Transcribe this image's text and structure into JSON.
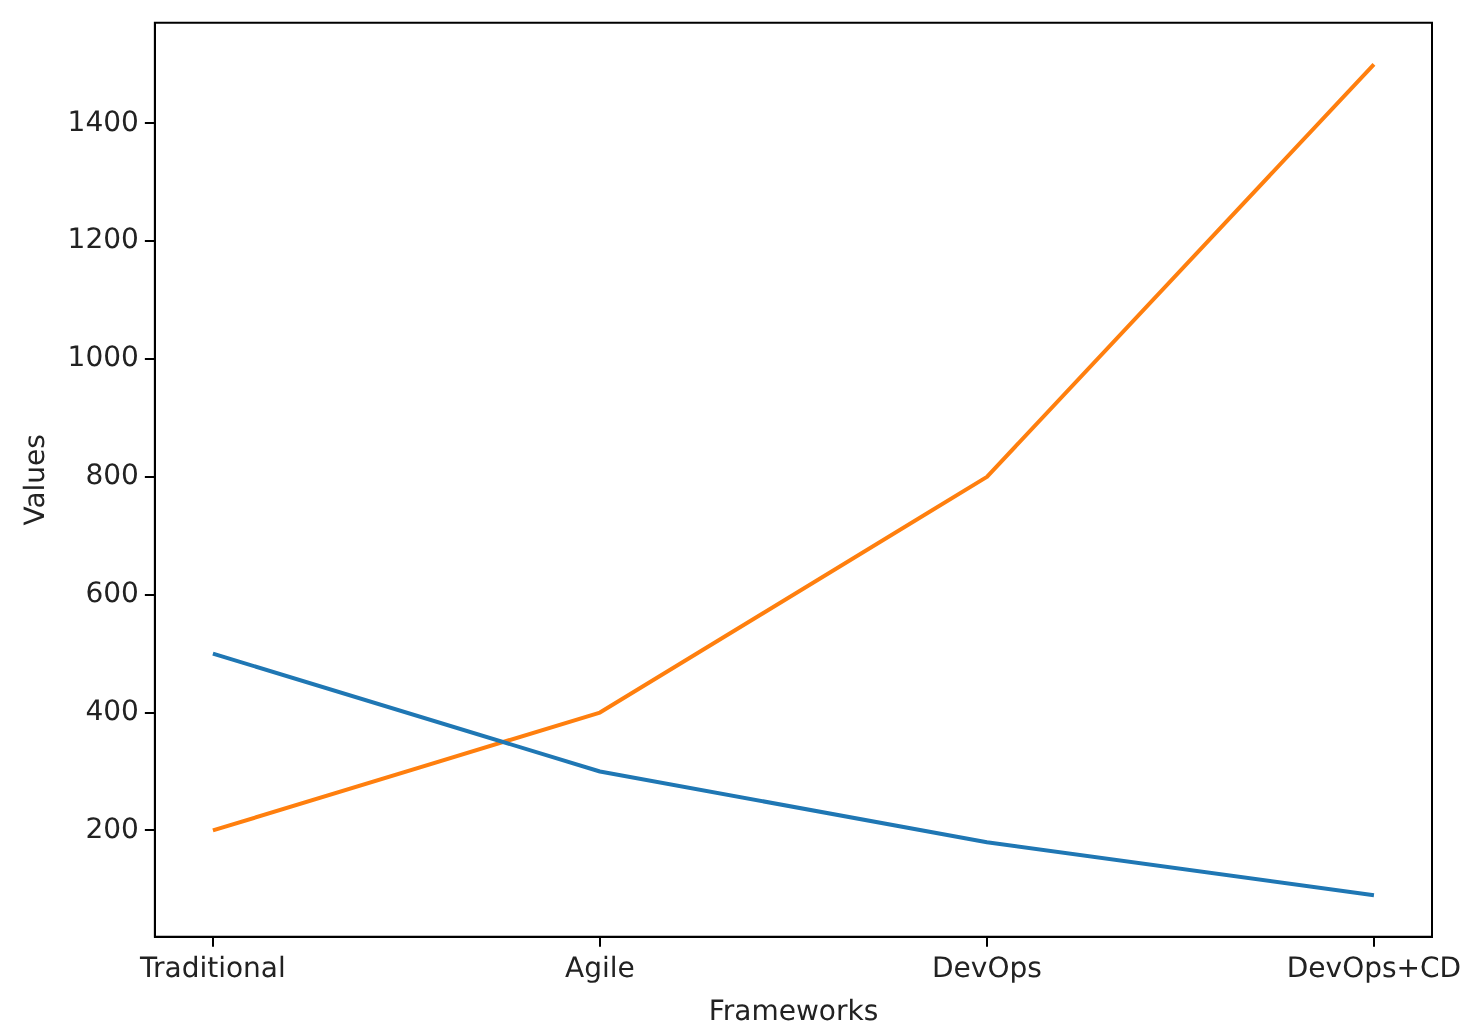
{
  "chart_data": {
    "type": "line",
    "xlabel": "Frameworks",
    "ylabel": "Values",
    "categories": [
      "Traditional",
      "Agile",
      "DevOps",
      "DevOps+CD"
    ],
    "series": [
      {
        "color": "#1f77b4",
        "values": [
          500,
          300,
          180,
          90
        ]
      },
      {
        "color": "#ff7f0e",
        "values": [
          200,
          400,
          800,
          1500
        ]
      }
    ],
    "ylim": [
      19.5,
      1570.5
    ],
    "yticks": [
      200,
      400,
      600,
      800,
      1000,
      1200,
      1400
    ],
    "grid": false,
    "legend": false,
    "marker": "none",
    "line_style": "solid"
  }
}
